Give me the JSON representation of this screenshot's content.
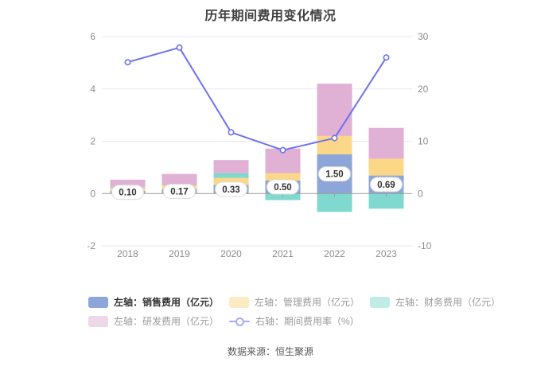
{
  "chart_data": {
    "type": "bar",
    "subtype": "stacked-bar-with-line-dual-axis",
    "title": "历年期间费用变化情况",
    "categories": [
      "2018",
      "2019",
      "2020",
      "2021",
      "2022",
      "2023"
    ],
    "series": [
      {
        "name": "左轴：销售费用（亿元）",
        "type": "bar",
        "axis": "left",
        "color": "#8CA6D9",
        "values": [
          0.1,
          0.17,
          0.33,
          0.5,
          1.5,
          0.69
        ]
      },
      {
        "name": "左轴：管理费用（亿元）",
        "type": "bar",
        "axis": "left",
        "color": "#FCD788",
        "values": [
          0.14,
          0.15,
          0.27,
          0.28,
          0.7,
          0.64
        ]
      },
      {
        "name": "左轴：财务费用（亿元）",
        "type": "bar",
        "axis": "left",
        "color": "#7FD9CE",
        "values": [
          0.01,
          0.01,
          0.18,
          -0.25,
          -0.7,
          -0.58
        ]
      },
      {
        "name": "左轴：研发费用（亿元）",
        "type": "bar",
        "axis": "left",
        "color": "#E0B0D5",
        "values": [
          0.28,
          0.42,
          0.5,
          0.94,
          2.0,
          1.18
        ]
      },
      {
        "name": "右轴：期间费用率（%）",
        "type": "line",
        "axis": "right",
        "color": "#6E72F0",
        "values": [
          25.1,
          27.9,
          11.7,
          8.3,
          10.6,
          26.0
        ]
      }
    ],
    "bar_data_labels": [
      "0.10",
      "0.17",
      "0.33",
      "0.50",
      "1.50",
      "0.69"
    ],
    "left_axis": {
      "ticks": [
        "6",
        "4",
        "2",
        "0",
        "-2"
      ],
      "max": 6,
      "min": -2
    },
    "right_axis": {
      "ticks": [
        "30",
        "20",
        "10",
        "0",
        "-10"
      ],
      "max": 30,
      "min": -10
    },
    "grid": true,
    "legend_position": "bottom",
    "colors": {
      "gridline": "#E4EAF2",
      "zero_axis": "#9A9A9A",
      "tick_label": "#8C8C8C",
      "bar_label_text": "#333333",
      "bar_label_bg": "#FFFFFF",
      "bar_label_border": "#DCDCDC"
    }
  },
  "legend": {
    "items": [
      {
        "label": "左轴：销售费用（亿元）",
        "color": "#8CA6D9",
        "type": "bar",
        "dimmed": false
      },
      {
        "label": "左轴：管理费用（亿元）",
        "color": "#FCD788",
        "type": "bar",
        "dimmed": true
      },
      {
        "label": "左轴：财务费用（亿元）",
        "color": "#7FD9CE",
        "type": "bar",
        "dimmed": true
      },
      {
        "label": "左轴：研发费用（亿元）",
        "color": "#E0B0D5",
        "type": "bar",
        "dimmed": true
      },
      {
        "label": "右轴：期间费用率（%）",
        "color": "#6E72F0",
        "type": "line",
        "dimmed": true
      }
    ]
  },
  "source_note": "数据来源：恒生聚源"
}
